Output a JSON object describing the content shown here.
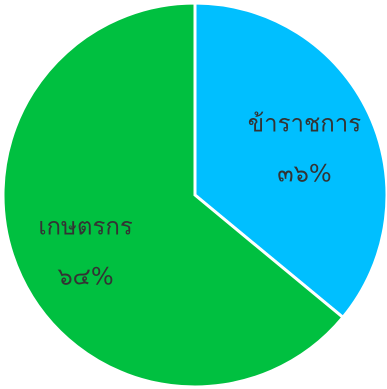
{
  "chart_data": {
    "type": "pie",
    "categories": [
      "ข้าราชการ",
      "เกษตรกร"
    ],
    "values": [
      36,
      64
    ],
    "value_labels": [
      "๓๖%",
      "๖๔%"
    ],
    "colors": [
      "#00bfff",
      "#00c040"
    ],
    "start": "12 o'clock",
    "direction": "clockwise",
    "legend": "none"
  }
}
